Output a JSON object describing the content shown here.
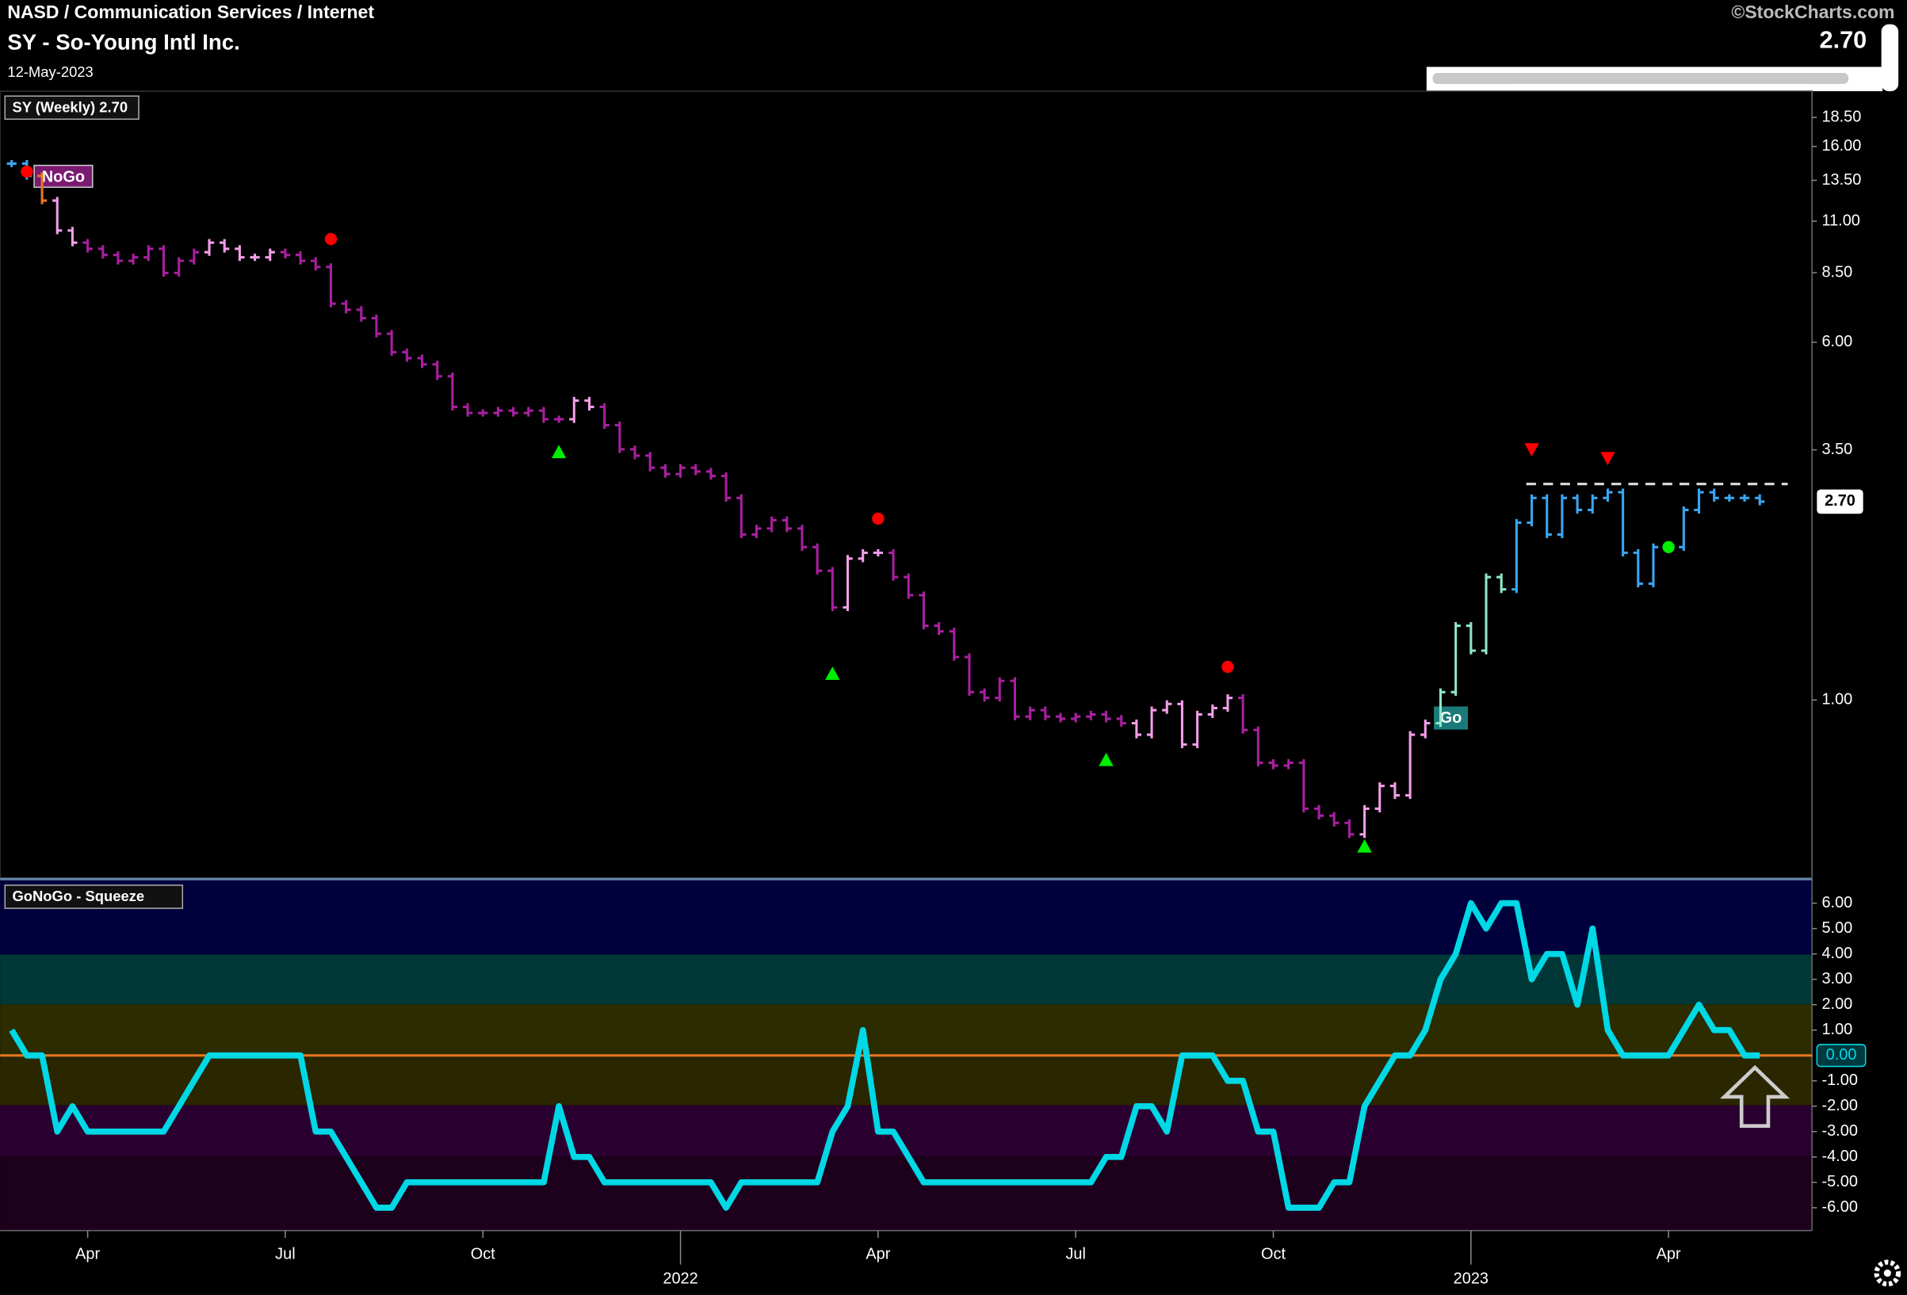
{
  "chart_data": [
    {
      "type": "stock",
      "breadcrumb": "NASD / Communication Services / Internet",
      "title": "SY - So-Young Intl Inc.",
      "date": "12-May-2023",
      "watermark": "©StockCharts.com",
      "legend": "SY (Weekly) 2.70",
      "last_price": {
        "value": 2.7,
        "label": "2.70"
      },
      "log_scale": true,
      "ylim": [
        0.41,
        21.1
      ],
      "yticks": [
        {
          "value": 1,
          "label": "1.00"
        },
        {
          "value": 3.5,
          "label": "3.50"
        },
        {
          "value": 6,
          "label": "6.00"
        },
        {
          "value": 8.5,
          "label": "8.50"
        },
        {
          "value": 11,
          "label": "11.00"
        },
        {
          "value": 13.5,
          "label": "13.50"
        },
        {
          "value": 16,
          "label": "16.00"
        },
        {
          "value": 18.5,
          "label": "18.50"
        }
      ],
      "values": [
        14.68,
        13.8,
        12.2,
        10.5,
        9.88,
        9.58,
        9.29,
        9.02,
        9.18,
        9.58,
        8.49,
        9.02,
        9.42,
        9.88,
        9.58,
        9.18,
        9.18,
        9.42,
        9.29,
        9.02,
        8.75,
        7.28,
        7.06,
        6.77,
        6.26,
        5.71,
        5.54,
        5.37,
        5.06,
        4.34,
        4.21,
        4.21,
        4.26,
        4.21,
        4.26,
        4.08,
        4.08,
        4.48,
        4.34,
        3.96,
        3.51,
        3.4,
        3.2,
        3.1,
        3.2,
        3.14,
        3.07,
        2.75,
        2.29,
        2.36,
        2.46,
        2.36,
        2.15,
        1.91,
        1.59,
        2.03,
        2.09,
        2.09,
        1.85,
        1.69,
        1.45,
        1.41,
        1.24,
        1.04,
        1.01,
        1.1,
        0.92,
        0.95,
        0.92,
        0.91,
        0.92,
        0.93,
        0.91,
        0.89,
        0.84,
        0.95,
        0.98,
        0.8,
        0.93,
        0.96,
        1.01,
        0.86,
        0.73,
        0.72,
        0.73,
        0.58,
        0.56,
        0.54,
        0.51,
        0.58,
        0.65,
        0.62,
        0.84,
        0.89,
        1.04,
        1.45,
        1.28,
        1.85,
        1.74,
        2.43,
        2.75,
        2.29,
        2.75,
        2.59,
        2.75,
        2.83,
        2.09,
        1.79,
        2.15,
        2.15,
        2.59,
        2.83,
        2.75,
        2.75,
        2.75,
        2.7
      ],
      "colors": [
        "#3aa6f2",
        "#3aa6f2",
        "#e87722",
        "#f29ee8",
        "#f29ee8",
        "#a8209f",
        "#a8209f",
        "#a8209f",
        "#a8209f",
        "#a8209f",
        "#a8209f",
        "#a8209f",
        "#a8209f",
        "#f29ee8",
        "#f29ee8",
        "#f29ee8",
        "#f29ee8",
        "#f29ee8",
        "#a8209f",
        "#a8209f",
        "#a8209f",
        "#a8209f",
        "#a8209f",
        "#a8209f",
        "#a8209f",
        "#a8209f",
        "#a8209f",
        "#a8209f",
        "#a8209f",
        "#a8209f",
        "#a8209f",
        "#a8209f",
        "#a8209f",
        "#a8209f",
        "#a8209f",
        "#a8209f",
        "#a8209f",
        "#f29ee8",
        "#f29ee8",
        "#a8209f",
        "#a8209f",
        "#a8209f",
        "#a8209f",
        "#a8209f",
        "#a8209f",
        "#a8209f",
        "#a8209f",
        "#a8209f",
        "#a8209f",
        "#a8209f",
        "#a8209f",
        "#a8209f",
        "#a8209f",
        "#a8209f",
        "#a8209f",
        "#f29ee8",
        "#f29ee8",
        "#f29ee8",
        "#a8209f",
        "#a8209f",
        "#a8209f",
        "#a8209f",
        "#a8209f",
        "#a8209f",
        "#a8209f",
        "#a8209f",
        "#a8209f",
        "#a8209f",
        "#a8209f",
        "#a8209f",
        "#a8209f",
        "#a8209f",
        "#a8209f",
        "#a8209f",
        "#f29ee8",
        "#f29ee8",
        "#f29ee8",
        "#f29ee8",
        "#f29ee8",
        "#f29ee8",
        "#f29ee8",
        "#a8209f",
        "#a8209f",
        "#a8209f",
        "#a8209f",
        "#a8209f",
        "#a8209f",
        "#a8209f",
        "#a8209f",
        "#f29ee8",
        "#f29ee8",
        "#f29ee8",
        "#f29ee8",
        "#f29ee8",
        "#8ee8c8",
        "#8ee8c8",
        "#8ee8c8",
        "#8ee8c8",
        "#8ee8c8",
        "#3aa6f2",
        "#3aa6f2",
        "#3aa6f2",
        "#3aa6f2",
        "#3aa6f2",
        "#3aa6f2",
        "#3aa6f2",
        "#3aa6f2",
        "#3aa6f2",
        "#3aa6f2",
        "#3aa6f2",
        "#3aa6f2",
        "#3aa6f2",
        "#3aa6f2",
        "#3aa6f2",
        "#3aa6f2",
        "#3aa6f2"
      ],
      "resistance": 2.95,
      "signals": [
        {
          "x": 1,
          "y": 14.1,
          "shape": "circle",
          "color": "#ff0000"
        },
        {
          "x": 21,
          "y": 10.06,
          "shape": "circle",
          "color": "#ff0000"
        },
        {
          "x": 57,
          "y": 2.48,
          "shape": "circle",
          "color": "#ff0000"
        },
        {
          "x": 80,
          "y": 1.18,
          "shape": "circle",
          "color": "#ff0000"
        },
        {
          "x": 36,
          "y": 3.46,
          "shape": "triangle-up",
          "color": "#00ee00"
        },
        {
          "x": 54,
          "y": 1.14,
          "shape": "triangle-up",
          "color": "#00ee00"
        },
        {
          "x": 72,
          "y": 0.74,
          "shape": "triangle-up",
          "color": "#00ee00"
        },
        {
          "x": 89,
          "y": 0.48,
          "shape": "triangle-up",
          "color": "#00ee00"
        },
        {
          "x": 100,
          "y": 3.51,
          "shape": "triangle-down",
          "color": "#ff0000"
        },
        {
          "x": 105,
          "y": 3.36,
          "shape": "triangle-down",
          "color": "#ff0000"
        },
        {
          "x": 109,
          "y": 2.15,
          "shape": "circle",
          "color": "#00ee00"
        }
      ],
      "annotations": [
        "NoGo",
        "Go"
      ]
    },
    {
      "type": "line",
      "legend": "GoNoGo - Squeeze",
      "last_value": {
        "value": 0,
        "label": "0.00"
      },
      "color": "#00d8e6",
      "ylim": [
        -6.9,
        6.9
      ],
      "yticks": [
        {
          "value": 6,
          "label": "6.00"
        },
        {
          "value": 5,
          "label": "5.00"
        },
        {
          "value": 4,
          "label": "4.00"
        },
        {
          "value": 3,
          "label": "3.00"
        },
        {
          "value": 2,
          "label": "2.00"
        },
        {
          "value": 1,
          "label": "1.00"
        },
        {
          "value": -1,
          "label": "-1.00"
        },
        {
          "value": -2,
          "label": "-2.00"
        },
        {
          "value": -3,
          "label": "-3.00"
        },
        {
          "value": -4,
          "label": "-4.00"
        },
        {
          "value": -5,
          "label": "-5.00"
        },
        {
          "value": -6,
          "label": "-6.00"
        }
      ],
      "xticks": [
        {
          "value": 5,
          "label": "Apr"
        },
        {
          "value": 18,
          "label": "Jul"
        },
        {
          "value": 31,
          "label": "Oct"
        },
        {
          "value": 44,
          "label": "2022"
        },
        {
          "value": 57,
          "label": "Apr"
        },
        {
          "value": 70,
          "label": "Jul"
        },
        {
          "value": 83,
          "label": "Oct"
        },
        {
          "value": 96,
          "label": "2023"
        },
        {
          "value": 109,
          "label": "Apr"
        }
      ],
      "values": [
        1,
        0,
        0,
        -3,
        -2,
        -3,
        -3,
        -3,
        -3,
        -3,
        -3,
        -2,
        -1,
        0,
        0,
        0,
        0,
        0,
        0,
        0,
        -3,
        -3,
        -4,
        -5,
        -6,
        -6,
        -5,
        -5,
        -5,
        -5,
        -5,
        -5,
        -5,
        -5,
        -5,
        -5,
        -2,
        -4,
        -4,
        -5,
        -5,
        -5,
        -5,
        -5,
        -5,
        -5,
        -5,
        -6,
        -5,
        -5,
        -5,
        -5,
        -5,
        -5,
        -3,
        -2,
        1,
        -3,
        -3,
        -4,
        -5,
        -5,
        -5,
        -5,
        -5,
        -5,
        -5,
        -5,
        -5,
        -5,
        -5,
        -5,
        -4,
        -4,
        -2,
        -2,
        -3,
        0,
        0,
        0,
        -1,
        -1,
        -3,
        -3,
        -6,
        -6,
        -6,
        -5,
        -5,
        -2,
        -1,
        0,
        0,
        1,
        3,
        4,
        6,
        5,
        6,
        6,
        3,
        4,
        4,
        2,
        5,
        1,
        0,
        0,
        0,
        0,
        1,
        2,
        1,
        1,
        0,
        0
      ]
    }
  ]
}
